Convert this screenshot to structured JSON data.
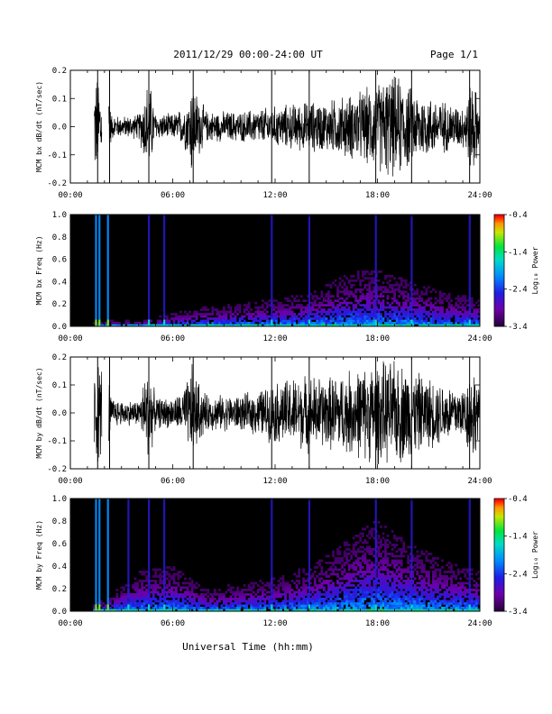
{
  "header": {
    "title": "2011/12/29  00:00-24:00 UT",
    "page": "Page 1/1"
  },
  "footer": {
    "xlabel": "Universal Time (hh:mm)"
  },
  "chart_data": [
    {
      "type": "line",
      "name": "bx-dbdt",
      "ylabel": "MCM bx dB/dt (nT/sec)",
      "xlim": [
        0,
        24
      ],
      "ylim": [
        -0.2,
        0.2
      ],
      "xticks": [
        "00:00",
        "06:00",
        "12:00",
        "18:00",
        "24:00"
      ],
      "yticks": [
        "-0.2",
        "-0.1",
        "0.0",
        "0.1",
        "0.2"
      ],
      "x_hours": [
        0,
        1.5,
        1.8,
        2.2,
        2.4,
        3,
        4,
        4.6,
        5,
        6,
        6.5,
        7,
        7.1,
        7.3,
        8,
        9,
        10,
        11,
        12,
        13,
        14,
        15,
        16,
        17,
        18,
        18.5,
        19,
        19.5,
        20,
        21,
        22,
        23,
        23.6,
        24
      ],
      "amplitude": [
        0,
        0.2,
        0.2,
        0.2,
        0.05,
        0.04,
        0.05,
        0.2,
        0.05,
        0.05,
        0.07,
        0.12,
        0.2,
        0.15,
        0.06,
        0.06,
        0.06,
        0.07,
        0.08,
        0.09,
        0.1,
        0.1,
        0.12,
        0.14,
        0.17,
        0.2,
        0.2,
        0.19,
        0.15,
        0.12,
        0.1,
        0.08,
        0.2,
        0.07
      ],
      "spikes_hours": [
        1.6,
        2.3,
        4.6,
        7.2,
        11.8,
        14.0,
        17.9,
        20.0,
        23.4
      ],
      "gap_hours": [
        [
          0,
          1.4
        ],
        [
          1.85,
          2.25
        ]
      ]
    },
    {
      "type": "heatmap",
      "name": "bx-spectrogram",
      "ylabel": "MCM bx Freq (Hz)",
      "xlim": [
        0,
        24
      ],
      "ylim": [
        0,
        1.0
      ],
      "xticks": [
        "00:00",
        "06:00",
        "12:00",
        "18:00",
        "24:00"
      ],
      "yticks": [
        "0.0",
        "0.2",
        "0.4",
        "0.6",
        "0.8",
        "1.0"
      ],
      "colorbar": {
        "label": "Log₁₀ Power",
        "ticks": [
          "-0.4",
          "-1.4",
          "-2.4",
          "-3.4"
        ],
        "range": [
          -3.4,
          -0.4
        ]
      },
      "activity_hours": [
        0,
        2,
        4,
        6,
        8,
        10,
        12,
        14,
        16,
        17,
        18,
        19,
        20,
        22,
        24
      ],
      "activity_top_hz": [
        0,
        0.05,
        0.05,
        0.12,
        0.18,
        0.2,
        0.25,
        0.3,
        0.45,
        0.5,
        0.5,
        0.45,
        0.4,
        0.3,
        0.25
      ],
      "bright_lines_hours": [
        1.5,
        1.7,
        2.2,
        4.6,
        5.5,
        11.8,
        14.0,
        17.9,
        20.0,
        23.4
      ]
    },
    {
      "type": "line",
      "name": "by-dbdt",
      "ylabel": "MCM by dB/dt (nT/sec)",
      "xlim": [
        0,
        24
      ],
      "ylim": [
        -0.2,
        0.2
      ],
      "xticks": [
        "00:00",
        "06:00",
        "12:00",
        "18:00",
        "24:00"
      ],
      "yticks": [
        "-0.2",
        "-0.1",
        "0.0",
        "0.1",
        "0.2"
      ],
      "x_hours": [
        0,
        1.5,
        1.8,
        2.2,
        2.4,
        3,
        4,
        4.6,
        5,
        6,
        6.5,
        7,
        7.1,
        7.3,
        8,
        9,
        10,
        11,
        12,
        13,
        14,
        15,
        16,
        17,
        18,
        18.5,
        19,
        19.5,
        20,
        21,
        22,
        23,
        23.6,
        24
      ],
      "amplitude": [
        0,
        0.2,
        0.2,
        0.2,
        0.06,
        0.05,
        0.05,
        0.2,
        0.06,
        0.06,
        0.08,
        0.15,
        0.2,
        0.15,
        0.07,
        0.07,
        0.07,
        0.09,
        0.12,
        0.14,
        0.15,
        0.14,
        0.16,
        0.18,
        0.2,
        0.2,
        0.2,
        0.2,
        0.17,
        0.14,
        0.12,
        0.1,
        0.2,
        0.08
      ],
      "spikes_hours": [
        1.6,
        2.3,
        4.6,
        7.2,
        11.8,
        14.0,
        17.9,
        20.0,
        23.4
      ],
      "gap_hours": [
        [
          0,
          1.4
        ],
        [
          1.85,
          2.25
        ]
      ]
    },
    {
      "type": "heatmap",
      "name": "by-spectrogram",
      "ylabel": "MCM by Freq (Hz)",
      "xlim": [
        0,
        24
      ],
      "ylim": [
        0,
        1.0
      ],
      "xticks": [
        "00:00",
        "06:00",
        "12:00",
        "18:00",
        "24:00"
      ],
      "yticks": [
        "0.0",
        "0.2",
        "0.4",
        "0.6",
        "0.8",
        "1.0"
      ],
      "colorbar": {
        "label": "Log₁₀ Power",
        "ticks": [
          "-0.4",
          "-1.4",
          "-2.4",
          "-3.4"
        ],
        "range": [
          -3.4,
          -0.4
        ]
      },
      "activity_hours": [
        0,
        2,
        4,
        6,
        8,
        10,
        12,
        14,
        16,
        17,
        18,
        19,
        20,
        22,
        24
      ],
      "activity_top_hz": [
        0,
        0.1,
        0.35,
        0.4,
        0.2,
        0.25,
        0.3,
        0.4,
        0.6,
        0.75,
        0.8,
        0.7,
        0.6,
        0.45,
        0.35
      ],
      "bright_lines_hours": [
        1.5,
        1.7,
        2.2,
        3.4,
        4.6,
        5.5,
        11.8,
        14.0,
        17.9,
        20.0,
        23.4
      ]
    }
  ]
}
